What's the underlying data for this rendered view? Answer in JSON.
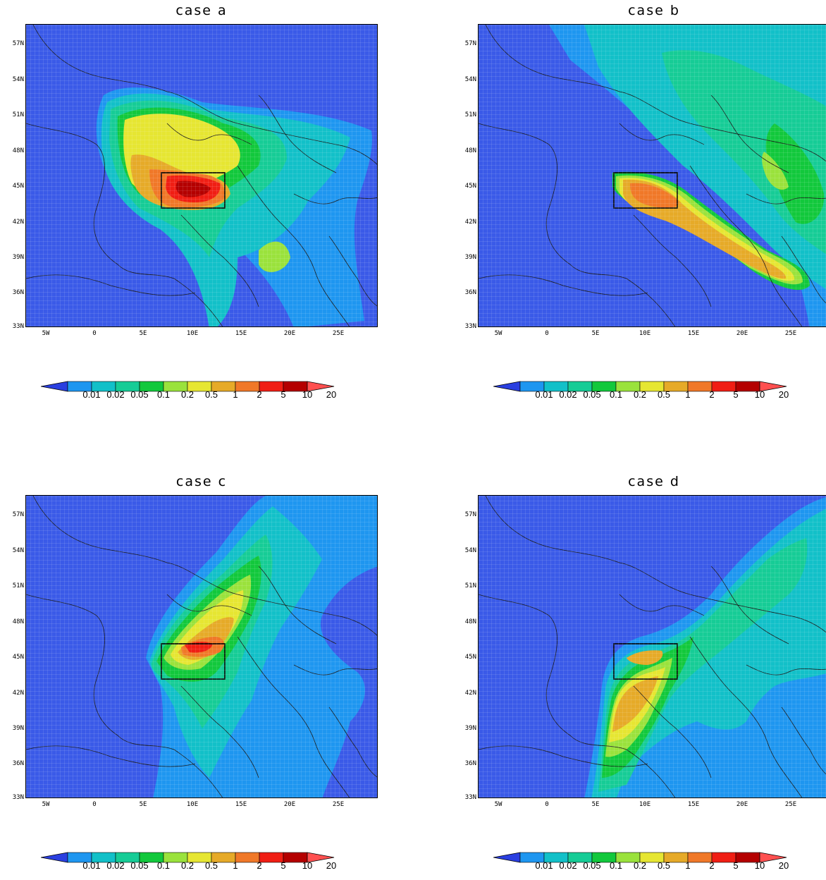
{
  "panels": [
    {
      "title": "case a"
    },
    {
      "title": "case b"
    },
    {
      "title": "case c"
    },
    {
      "title": "case d"
    }
  ],
  "y_ticks": [
    "57N",
    "54N",
    "51N",
    "48N",
    "45N",
    "42N",
    "39N",
    "36N",
    "33N"
  ],
  "x_ticks": [
    "5W",
    "0",
    "5E",
    "10E",
    "15E",
    "20E",
    "25E"
  ],
  "colorbar": {
    "labels": [
      "0.01",
      "0.02",
      "0.05",
      "0.1",
      "0.2",
      "0.5",
      "1",
      "2",
      "5",
      "10",
      "20"
    ],
    "colors": [
      "#2a3fe0",
      "#1e96f0",
      "#12c0c8",
      "#16cc96",
      "#12c83c",
      "#9ae23c",
      "#e6e632",
      "#e6aa28",
      "#f07828",
      "#f01e14",
      "#b40000",
      "#ff5050"
    ]
  },
  "colors": {
    "ocean_bg": "#3a5ae8",
    "frame": "#000000",
    "coastline": "#1a1a1a"
  }
}
